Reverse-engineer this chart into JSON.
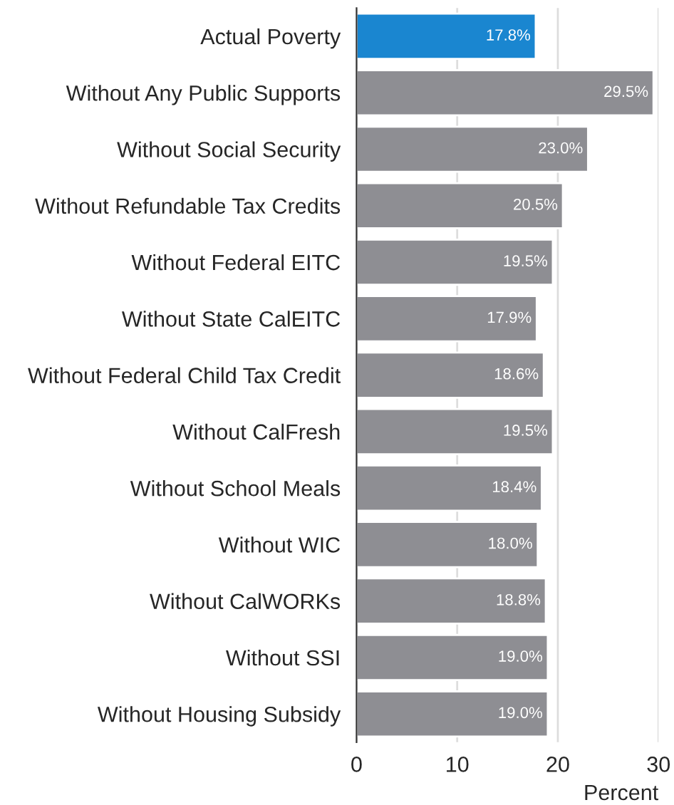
{
  "chart_data": {
    "type": "bar",
    "orientation": "horizontal",
    "xlabel": "Percent",
    "categories": [
      "Actual Poverty",
      "Without Any Public Supports",
      "Without Social Security",
      "Without Refundable Tax Credits",
      "Without Federal EITC",
      "Without State CalEITC",
      "Without Federal Child Tax Credit",
      "Without CalFresh",
      "Without School Meals",
      "Without WIC",
      "Without CalWORKs",
      "Without SSI",
      "Without Housing Subsidy"
    ],
    "values": [
      17.8,
      29.5,
      23.0,
      20.5,
      19.5,
      17.9,
      18.6,
      19.5,
      18.4,
      18.0,
      18.8,
      19.0,
      19.0
    ],
    "value_labels": [
      "17.8%",
      "29.5%",
      "23.0%",
      "20.5%",
      "19.5%",
      "17.9%",
      "18.6%",
      "19.5%",
      "18.4%",
      "18.0%",
      "18.8%",
      "19.0%",
      "19.0%"
    ],
    "colors": [
      "#1a86d0",
      "#8e8e93",
      "#8e8e93",
      "#8e8e93",
      "#8e8e93",
      "#8e8e93",
      "#8e8e93",
      "#8e8e93",
      "#8e8e93",
      "#8e8e93",
      "#8e8e93",
      "#8e8e93",
      "#8e8e93"
    ],
    "xlim": [
      0,
      30
    ],
    "xticks": [
      0,
      10,
      20,
      30
    ],
    "grid": "x"
  }
}
